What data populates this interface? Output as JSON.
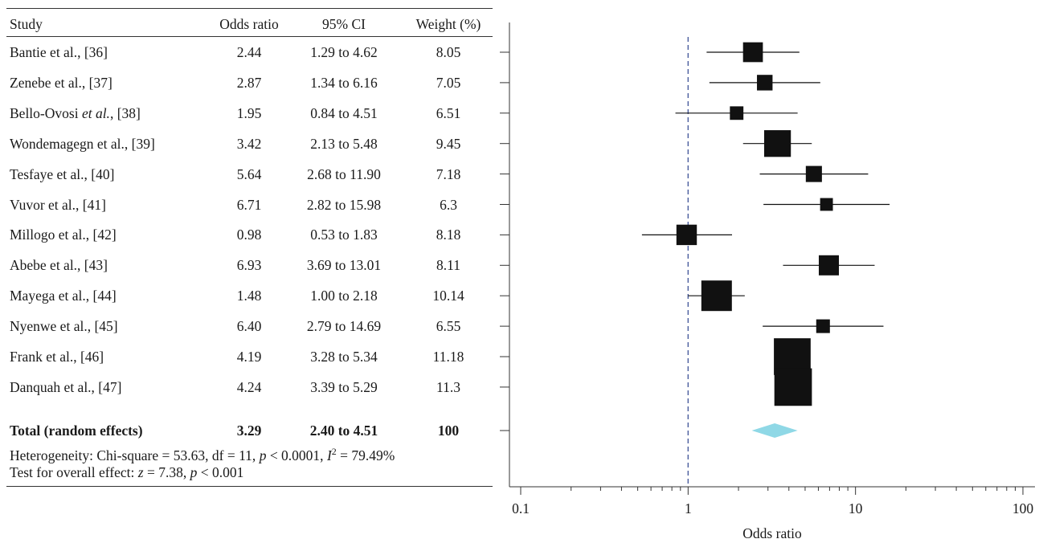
{
  "table": {
    "headers": {
      "study": "Study",
      "odds_ratio": "Odds ratio",
      "ci": "95% CI",
      "weight": "Weight (%)"
    },
    "rows": [
      {
        "study_name": "Bantie et al., [36]",
        "or": "2.44",
        "ci": "1.29 to 4.62",
        "weight": "8.05"
      },
      {
        "study_name": "Zenebe et al., [37]",
        "or": "2.87",
        "ci": "1.34 to 6.16",
        "weight": "7.05"
      },
      {
        "study_prefix": "Bello-Ovosi ",
        "study_italic": "et al.",
        "study_suffix": ", [38]",
        "or": "1.95",
        "ci": "0.84 to 4.51",
        "weight": "6.51"
      },
      {
        "study_name": "Wondemagegn et al., [39]",
        "or": "3.42",
        "ci": "2.13 to 5.48",
        "weight": "9.45"
      },
      {
        "study_name": "Tesfaye et al., [40]",
        "or": "5.64",
        "ci": "2.68 to 11.90",
        "weight": "7.18"
      },
      {
        "study_name": "Vuvor et al., [41]",
        "or": "6.71",
        "ci": "2.82 to 15.98",
        "weight": "6.3"
      },
      {
        "study_name": "Millogo et al., [42]",
        "or": "0.98",
        "ci": "0.53 to 1.83",
        "weight": "8.18"
      },
      {
        "study_name": "Abebe et al., [43]",
        "or": "6.93",
        "ci": "3.69 to 13.01",
        "weight": "8.11"
      },
      {
        "study_name": "Mayega et al., [44]",
        "or": "1.48",
        "ci": "1.00 to 2.18",
        "weight": "10.14"
      },
      {
        "study_name": "Nyenwe et al., [45]",
        "or": "6.40",
        "ci": "2.79 to 14.69",
        "weight": "6.55"
      },
      {
        "study_name": "Frank et al., [46]",
        "or": "4.19",
        "ci": "3.28 to 5.34",
        "weight": "11.18"
      },
      {
        "study_name": "Danquah et al., [47]",
        "or": "4.24",
        "ci": "3.39 to 5.29",
        "weight": "11.3"
      }
    ],
    "total": {
      "label": "Total (random effects)",
      "or": "3.29",
      "ci": "2.40 to 4.51",
      "weight": "100"
    },
    "heterogeneity": {
      "prefix": "Heterogeneity: Chi-square = 53.63, df = 11, ",
      "p_symbol": "p",
      "p_value": " < 0.0001, ",
      "i_symbol": "I",
      "i_sup": "2",
      "i_value": " = 79.49%"
    },
    "overall_effect": {
      "prefix": "Test for overall effect: ",
      "z_symbol": "z",
      "z_value": " = 7.38, ",
      "p_symbol": "p",
      "p_value": " < 0.001"
    }
  },
  "chart_data": {
    "type": "forest",
    "x_scale": "log",
    "xlim": [
      0.09,
      110
    ],
    "xlabel": "Odds ratio",
    "x_ticks": [
      {
        "value": 0.1,
        "label": "0.1"
      },
      {
        "value": 1,
        "label": "1"
      },
      {
        "value": 10,
        "label": "10"
      },
      {
        "value": 100,
        "label": "100"
      }
    ],
    "reference_line": 1,
    "studies": [
      {
        "or": 2.44,
        "lo": 1.29,
        "hi": 4.62,
        "weight": 8.05
      },
      {
        "or": 2.87,
        "lo": 1.34,
        "hi": 6.16,
        "weight": 7.05
      },
      {
        "or": 1.95,
        "lo": 0.84,
        "hi": 4.51,
        "weight": 6.51
      },
      {
        "or": 3.42,
        "lo": 2.13,
        "hi": 5.48,
        "weight": 9.45
      },
      {
        "or": 5.64,
        "lo": 2.68,
        "hi": 11.9,
        "weight": 7.18
      },
      {
        "or": 6.71,
        "lo": 2.82,
        "hi": 15.98,
        "weight": 6.3
      },
      {
        "or": 0.98,
        "lo": 0.53,
        "hi": 1.83,
        "weight": 8.18
      },
      {
        "or": 6.93,
        "lo": 3.69,
        "hi": 13.01,
        "weight": 8.11
      },
      {
        "or": 1.48,
        "lo": 1.0,
        "hi": 2.18,
        "weight": 10.14
      },
      {
        "or": 6.4,
        "lo": 2.79,
        "hi": 14.69,
        "weight": 6.55
      },
      {
        "or": 4.19,
        "lo": 3.28,
        "hi": 5.34,
        "weight": 11.18
      },
      {
        "or": 4.24,
        "lo": 3.39,
        "hi": 5.29,
        "weight": 11.3
      }
    ],
    "total": {
      "or": 3.29,
      "lo": 2.4,
      "hi": 4.51
    },
    "colors": {
      "marker": "#111111",
      "diamond": "#8fd8e6",
      "reference": "#4a5d9e",
      "axis": "#333333"
    }
  }
}
